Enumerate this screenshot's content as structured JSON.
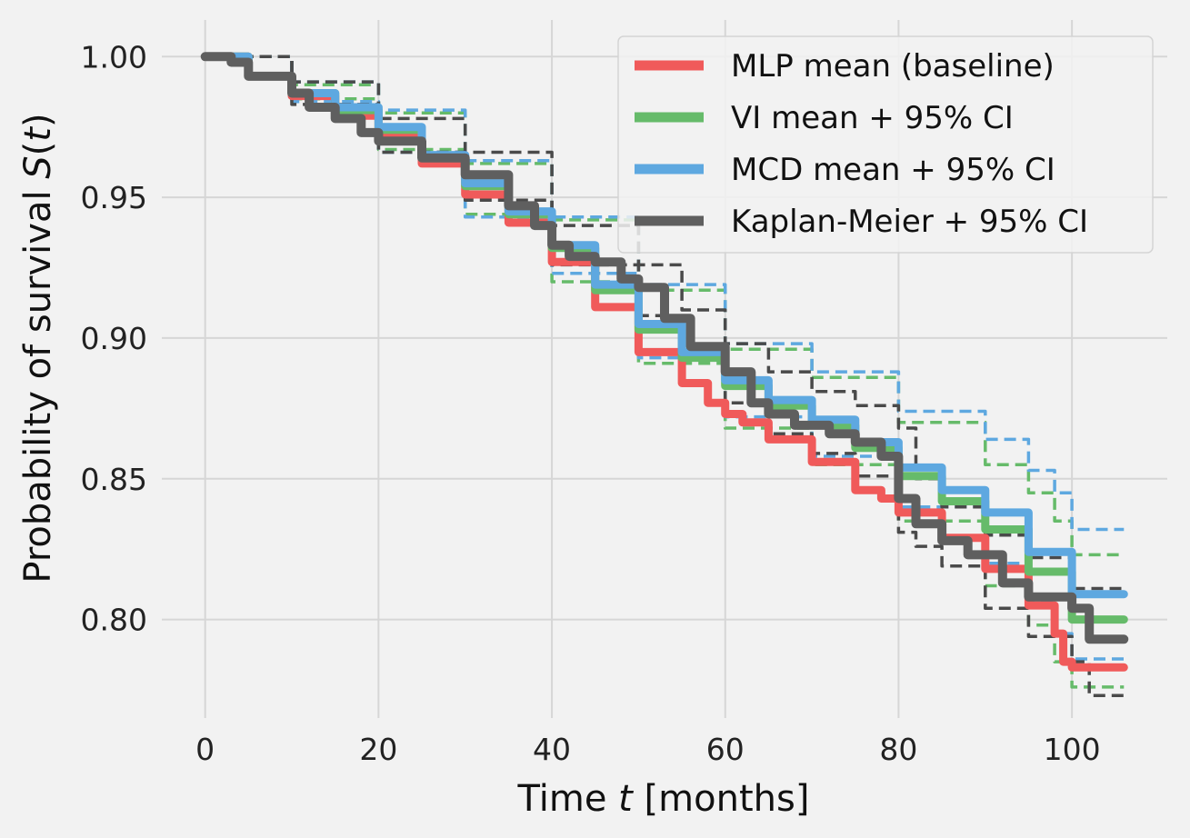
{
  "chart_data": {
    "type": "line",
    "xlabel_prefix": "Time ",
    "xlabel_var": "t",
    "xlabel_suffix": " [months]",
    "ylabel_prefix": "Probability of survival ",
    "ylabel_var": "S",
    "ylabel_open": "(",
    "ylabel_arg": "t",
    "ylabel_close": ")",
    "xlim": [
      -5,
      111
    ],
    "ylim": [
      0.765,
      1.013
    ],
    "xticks": [
      0,
      20,
      40,
      60,
      80,
      100
    ],
    "xtick_labels": [
      "0",
      "20",
      "40",
      "60",
      "80",
      "100"
    ],
    "yticks": [
      0.8,
      0.85,
      0.9,
      0.95,
      1.0
    ],
    "ytick_labels": [
      "0.80",
      "0.85",
      "0.90",
      "0.95",
      "1.00"
    ],
    "grid": true,
    "legend_position": "top-right",
    "legend": [
      {
        "label": "MLP mean (baseline)",
        "color": "#f05a5a"
      },
      {
        "label": "VI mean + 95% CI",
        "color": "#66bb6a"
      },
      {
        "label": "MCD mean + 95% CI",
        "color": "#5ea8e0"
      },
      {
        "label": "Kaplan-Meier + 95% CI",
        "color": "#5f5f5f"
      }
    ],
    "series": [
      {
        "name": "MLP mean (baseline)",
        "color": "#f05a5a",
        "style": "solid",
        "x": [
          0,
          5,
          10,
          15,
          20,
          25,
          30,
          35,
          40,
          45,
          50,
          55,
          58,
          60,
          62,
          65,
          70,
          75,
          78,
          80,
          85,
          90,
          95,
          98,
          99,
          100,
          106
        ],
        "y": [
          1.0,
          0.993,
          0.986,
          0.979,
          0.972,
          0.962,
          0.951,
          0.941,
          0.927,
          0.911,
          0.895,
          0.884,
          0.877,
          0.873,
          0.87,
          0.864,
          0.856,
          0.846,
          0.843,
          0.838,
          0.829,
          0.818,
          0.805,
          0.795,
          0.785,
          0.783,
          0.783
        ]
      },
      {
        "name": "VI mean + 95% CI",
        "color": "#66bb6a",
        "style": "solid",
        "x": [
          0,
          5,
          10,
          15,
          20,
          25,
          30,
          35,
          40,
          45,
          50,
          55,
          60,
          65,
          70,
          75,
          80,
          85,
          90,
          95,
          100,
          106
        ],
        "y": [
          1.0,
          0.993,
          0.987,
          0.981,
          0.974,
          0.964,
          0.954,
          0.944,
          0.932,
          0.917,
          0.903,
          0.893,
          0.883,
          0.876,
          0.869,
          0.861,
          0.851,
          0.842,
          0.832,
          0.817,
          0.8,
          0.8
        ]
      },
      {
        "name": "MCD mean + 95% CI",
        "color": "#5ea8e0",
        "style": "solid",
        "x": [
          0,
          5,
          10,
          15,
          20,
          25,
          30,
          35,
          40,
          45,
          50,
          55,
          60,
          65,
          70,
          75,
          80,
          85,
          90,
          95,
          100,
          106
        ],
        "y": [
          1.0,
          0.993,
          0.987,
          0.982,
          0.975,
          0.965,
          0.955,
          0.945,
          0.933,
          0.919,
          0.905,
          0.895,
          0.885,
          0.878,
          0.871,
          0.863,
          0.854,
          0.846,
          0.838,
          0.824,
          0.809,
          0.809
        ]
      },
      {
        "name": "Kaplan-Meier + 95% CI",
        "color": "#5f5f5f",
        "style": "solid",
        "x": [
          0,
          3,
          5,
          10,
          12,
          15,
          18,
          20,
          25,
          30,
          35,
          38,
          40,
          42,
          45,
          48,
          50,
          53,
          56,
          60,
          63,
          65,
          68,
          72,
          75,
          78,
          80,
          82,
          85,
          88,
          92,
          95,
          100,
          102,
          106
        ],
        "y": [
          1.0,
          0.998,
          0.993,
          0.987,
          0.982,
          0.978,
          0.973,
          0.97,
          0.964,
          0.958,
          0.947,
          0.94,
          0.933,
          0.929,
          0.927,
          0.921,
          0.918,
          0.907,
          0.897,
          0.888,
          0.877,
          0.873,
          0.869,
          0.866,
          0.863,
          0.858,
          0.843,
          0.834,
          0.828,
          0.823,
          0.813,
          0.808,
          0.804,
          0.793,
          0.793
        ]
      },
      {
        "color": "#66bb6a",
        "style": "dashed",
        "x": [
          0,
          10,
          20,
          30,
          40,
          50,
          60,
          70,
          80,
          90,
          95,
          98,
          100,
          106
        ],
        "y": [
          1.0,
          0.99,
          0.98,
          0.962,
          0.942,
          0.917,
          0.896,
          0.886,
          0.87,
          0.855,
          0.845,
          0.835,
          0.823,
          0.823
        ]
      },
      {
        "color": "#66bb6a",
        "style": "dashed",
        "x": [
          0,
          10,
          20,
          30,
          40,
          50,
          60,
          70,
          80,
          90,
          95,
          98,
          100,
          106
        ],
        "y": [
          1.0,
          0.985,
          0.967,
          0.944,
          0.92,
          0.891,
          0.868,
          0.855,
          0.835,
          0.812,
          0.798,
          0.785,
          0.776,
          0.776
        ]
      },
      {
        "color": "#5ea8e0",
        "style": "dashed",
        "x": [
          0,
          10,
          20,
          30,
          40,
          50,
          60,
          70,
          80,
          90,
          95,
          98,
          100,
          106
        ],
        "y": [
          1.0,
          0.991,
          0.981,
          0.963,
          0.943,
          0.919,
          0.898,
          0.888,
          0.874,
          0.864,
          0.853,
          0.845,
          0.832,
          0.832
        ]
      },
      {
        "color": "#5ea8e0",
        "style": "dashed",
        "x": [
          0,
          10,
          20,
          30,
          40,
          50,
          60,
          70,
          80,
          90,
          95,
          98,
          100,
          106
        ],
        "y": [
          1.0,
          0.984,
          0.966,
          0.943,
          0.923,
          0.893,
          0.872,
          0.858,
          0.84,
          0.82,
          0.806,
          0.795,
          0.786,
          0.786
        ]
      },
      {
        "color": "#4a4a4a",
        "style": "dashed",
        "x": [
          0,
          10,
          20,
          30,
          40,
          50,
          55,
          60,
          65,
          70,
          75,
          80,
          82,
          85,
          90,
          95,
          100,
          106
        ],
        "y": [
          1.0,
          0.991,
          0.978,
          0.966,
          0.94,
          0.926,
          0.91,
          0.898,
          0.888,
          0.881,
          0.876,
          0.868,
          0.85,
          0.84,
          0.83,
          0.822,
          0.811,
          0.811
        ]
      },
      {
        "color": "#4a4a4a",
        "style": "dashed",
        "x": [
          0,
          10,
          20,
          30,
          40,
          50,
          55,
          60,
          65,
          70,
          75,
          80,
          82,
          85,
          90,
          95,
          100,
          102,
          106
        ],
        "y": [
          1.0,
          0.983,
          0.966,
          0.949,
          0.926,
          0.908,
          0.893,
          0.877,
          0.866,
          0.859,
          0.851,
          0.831,
          0.826,
          0.819,
          0.804,
          0.794,
          0.785,
          0.773,
          0.773
        ]
      }
    ]
  }
}
